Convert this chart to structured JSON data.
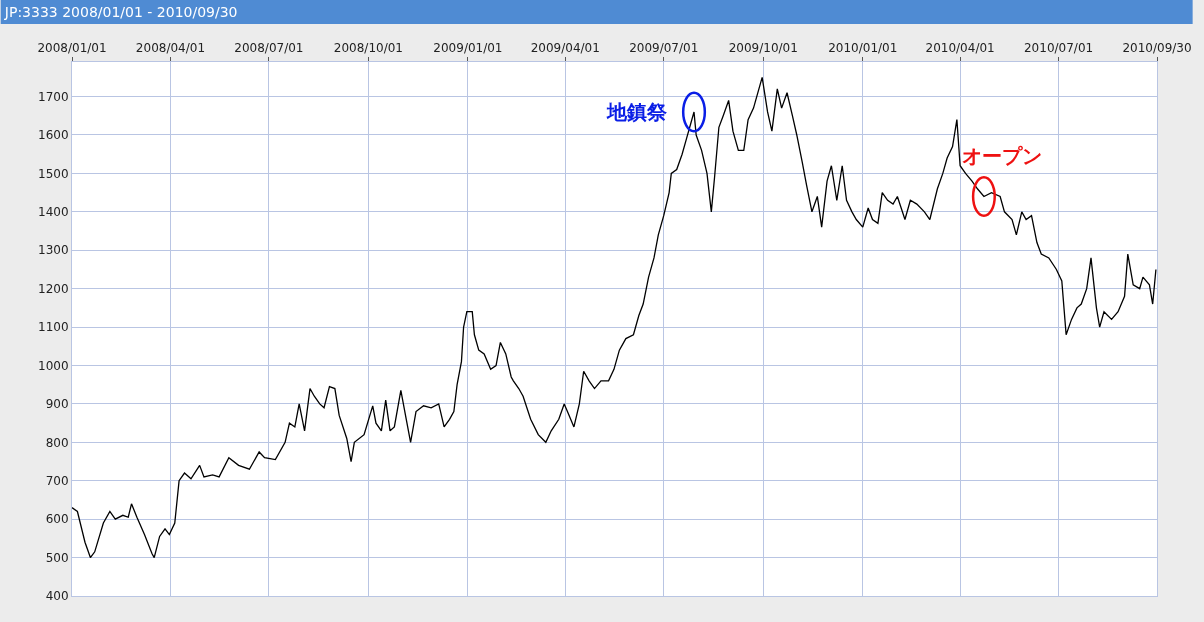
{
  "chart_data": {
    "type": "line",
    "title": "JP:3333 2008/01/01 - 2010/09/30",
    "x": [
      "2008-01-01",
      "2008-01-06",
      "2008-01-13",
      "2008-01-18",
      "2008-01-22",
      "2008-01-30",
      "2008-02-05",
      "2008-02-10",
      "2008-02-17",
      "2008-02-22",
      "2008-02-25",
      "2008-03-01",
      "2008-03-08",
      "2008-03-15",
      "2008-03-17",
      "2008-03-22",
      "2008-03-27",
      "2008-03-31",
      "2008-04-05",
      "2008-04-09",
      "2008-04-14",
      "2008-04-20",
      "2008-04-28",
      "2008-05-02",
      "2008-05-10",
      "2008-05-16",
      "2008-05-25",
      "2008-06-03",
      "2008-06-13",
      "2008-06-22",
      "2008-06-27",
      "2008-07-07",
      "2008-07-16",
      "2008-07-20",
      "2008-07-25",
      "2008-07-29",
      "2008-08-03",
      "2008-08-08",
      "2008-08-12",
      "2008-08-17",
      "2008-08-21",
      "2008-08-26",
      "2008-08-31",
      "2008-09-04",
      "2008-09-11",
      "2008-09-15",
      "2008-09-18",
      "2008-09-27",
      "2008-10-05",
      "2008-10-08",
      "2008-10-13",
      "2008-10-17",
      "2008-10-21",
      "2008-10-25",
      "2008-10-31",
      "2008-11-05",
      "2008-11-09",
      "2008-11-14",
      "2008-11-21",
      "2008-11-28",
      "2008-12-05",
      "2008-12-10",
      "2008-12-15",
      "2008-12-19",
      "2008-12-22",
      "2008-12-26",
      "2008-12-28",
      "2008-12-31",
      "2009-01-05",
      "2009-01-07",
      "2009-01-11",
      "2009-01-16",
      "2009-01-22",
      "2009-01-27",
      "2009-01-31",
      "2009-02-05",
      "2009-02-10",
      "2009-02-12",
      "2009-02-17",
      "2009-02-21",
      "2009-02-28",
      "2009-03-07",
      "2009-03-14",
      "2009-03-19",
      "2009-03-26",
      "2009-03-31",
      "2009-04-03",
      "2009-04-09",
      "2009-04-14",
      "2009-04-18",
      "2009-04-23",
      "2009-04-28",
      "2009-05-04",
      "2009-05-11",
      "2009-05-16",
      "2009-05-21",
      "2009-05-27",
      "2009-06-03",
      "2009-06-08",
      "2009-06-12",
      "2009-06-17",
      "2009-06-22",
      "2009-06-26",
      "2009-07-01",
      "2009-07-06",
      "2009-07-08",
      "2009-07-13",
      "2009-07-18",
      "2009-07-22",
      "2009-07-26",
      "2009-07-29",
      "2009-07-31",
      "2009-08-05",
      "2009-08-10",
      "2009-08-14",
      "2009-08-17",
      "2009-08-21",
      "2009-08-25",
      "2009-08-30",
      "2009-09-03",
      "2009-09-08",
      "2009-09-13",
      "2009-09-17",
      "2009-09-22",
      "2009-09-30",
      "2009-10-05",
      "2009-10-09",
      "2009-10-14",
      "2009-10-18",
      "2009-10-23",
      "2009-10-28",
      "2009-11-01",
      "2009-11-06",
      "2009-11-10",
      "2009-11-15",
      "2009-11-20",
      "2009-11-24",
      "2009-11-29",
      "2009-12-03",
      "2009-12-08",
      "2009-12-13",
      "2009-12-17",
      "2009-12-22",
      "2009-12-26",
      "2010-01-01",
      "2010-01-06",
      "2010-01-10",
      "2010-01-15",
      "2010-01-19",
      "2010-01-24",
      "2010-01-29",
      "2010-02-02",
      "2010-02-09",
      "2010-02-14",
      "2010-02-20",
      "2010-02-27",
      "2010-03-04",
      "2010-03-11",
      "2010-03-16",
      "2010-03-20",
      "2010-03-25",
      "2010-03-29",
      "2010-04-01",
      "2010-04-06",
      "2010-04-12",
      "2010-04-17",
      "2010-04-23",
      "2010-04-30",
      "2010-05-08",
      "2010-05-12",
      "2010-05-19",
      "2010-05-23",
      "2010-05-28",
      "2010-06-01",
      "2010-06-06",
      "2010-06-11",
      "2010-06-15",
      "2010-06-22",
      "2010-06-29",
      "2010-07-04",
      "2010-07-08",
      "2010-07-13",
      "2010-07-18",
      "2010-07-22",
      "2010-07-27",
      "2010-07-31",
      "2010-08-05",
      "2010-08-08",
      "2010-08-12",
      "2010-08-19",
      "2010-08-25",
      "2010-08-31",
      "2010-09-03",
      "2010-09-08",
      "2010-09-14",
      "2010-09-17",
      "2010-09-23",
      "2010-09-26",
      "2010-09-29"
    ],
    "series": [
      {
        "color": "#000000",
        "values": [
          630,
          620,
          540,
          500,
          515,
          590,
          620,
          600,
          610,
          605,
          640,
          605,
          560,
          510,
          500,
          555,
          575,
          560,
          590,
          700,
          720,
          705,
          740,
          710,
          715,
          710,
          760,
          740,
          730,
          775,
          760,
          755,
          800,
          850,
          840,
          900,
          830,
          940,
          920,
          900,
          890,
          945,
          940,
          870,
          810,
          750,
          800,
          820,
          895,
          850,
          830,
          910,
          830,
          840,
          935,
          860,
          800,
          880,
          895,
          890,
          900,
          840,
          860,
          880,
          950,
          1010,
          1100,
          1140,
          1140,
          1080,
          1040,
          1030,
          990,
          1000,
          1060,
          1030,
          970,
          960,
          940,
          920,
          860,
          820,
          800,
          830,
          860,
          900,
          880,
          840,
          900,
          985,
          960,
          940,
          960,
          960,
          990,
          1040,
          1070,
          1080,
          1130,
          1160,
          1230,
          1280,
          1340,
          1390,
          1450,
          1500,
          1510,
          1550,
          1590,
          1630,
          1660,
          1600,
          1560,
          1500,
          1400,
          1490,
          1620,
          1650,
          1690,
          1610,
          1560,
          1560,
          1640,
          1670,
          1750,
          1660,
          1610,
          1720,
          1670,
          1710,
          1650,
          1600,
          1530,
          1470,
          1400,
          1440,
          1360,
          1480,
          1520,
          1430,
          1520,
          1430,
          1400,
          1380,
          1360,
          1410,
          1380,
          1370,
          1450,
          1430,
          1420,
          1440,
          1380,
          1430,
          1420,
          1400,
          1380,
          1460,
          1500,
          1540,
          1570,
          1640,
          1520,
          1500,
          1480,
          1460,
          1440,
          1450,
          1440,
          1400,
          1380,
          1340,
          1400,
          1380,
          1390,
          1320,
          1290,
          1280,
          1250,
          1220,
          1080,
          1120,
          1150,
          1160,
          1200,
          1280,
          1150,
          1100,
          1140,
          1120,
          1140,
          1180,
          1290,
          1210,
          1200,
          1230,
          1210,
          1160,
          1250
        ]
      }
    ],
    "xlim": [
      "2008-01-01",
      "2010-09-30"
    ],
    "xticks": [
      {
        "value": "2008-01-01",
        "label": "2008/01/01"
      },
      {
        "value": "2008-04-01",
        "label": "2008/04/01"
      },
      {
        "value": "2008-07-01",
        "label": "2008/07/01"
      },
      {
        "value": "2008-10-01",
        "label": "2008/10/01"
      },
      {
        "value": "2009-01-01",
        "label": "2009/01/01"
      },
      {
        "value": "2009-04-01",
        "label": "2009/04/01"
      },
      {
        "value": "2009-07-01",
        "label": "2009/07/01"
      },
      {
        "value": "2009-10-01",
        "label": "2009/10/01"
      },
      {
        "value": "2010-01-01",
        "label": "2010/01/01"
      },
      {
        "value": "2010-04-01",
        "label": "2010/04/01"
      },
      {
        "value": "2010-07-01",
        "label": "2010/07/01"
      },
      {
        "value": "2010-09-30",
        "label": "2010/09/30"
      }
    ],
    "ylim": [
      400,
      1790
    ],
    "yticks": [
      400,
      500,
      600,
      700,
      800,
      900,
      1000,
      1100,
      1200,
      1300,
      1400,
      1500,
      1600,
      1700
    ],
    "annotations": [
      {
        "text": "地鎮祭",
        "x": "2009-07-29",
        "y": 1660
      },
      {
        "text": "オープン",
        "x": "2010-04-23",
        "y": 1440
      }
    ],
    "grid": true,
    "marker": "none",
    "line_style": "solid"
  }
}
